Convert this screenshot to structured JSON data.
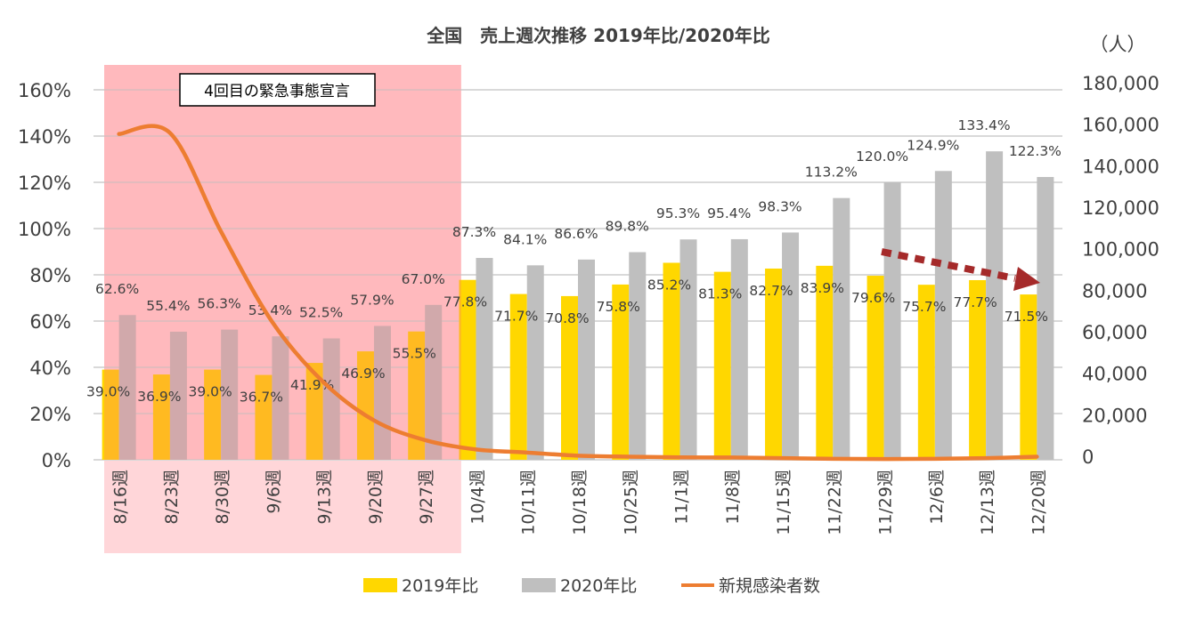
{
  "chart_data": {
    "type": "bar",
    "title": "全国　売上週次推移  2019年比/2020年比",
    "y2_unit": "（人）",
    "annotation": "4回目の緊急事態宣言",
    "categories": [
      "8/16週",
      "8/23週",
      "8/30週",
      "9/6週",
      "9/13週",
      "9/20週",
      "9/27週",
      "10/4週",
      "10/11週",
      "10/18週",
      "10/25週",
      "11/1週",
      "11/8週",
      "11/15週",
      "11/22週",
      "11/29週",
      "12/6週",
      "12/13週",
      "12/20週"
    ],
    "highlight_range": [
      "8/16週",
      "9/27週"
    ],
    "ylim": [
      0,
      160
    ],
    "yticks": [
      "0%",
      "20%",
      "40%",
      "60%",
      "80%",
      "100%",
      "120%",
      "140%",
      "160%"
    ],
    "y2lim": [
      0,
      180000
    ],
    "y2ticks": [
      "0",
      "20,000",
      "40,000",
      "60,000",
      "80,000",
      "100,000",
      "120,000",
      "140,000",
      "160,000",
      "180,000"
    ],
    "grid": true,
    "legend_position": "bottom",
    "series": [
      {
        "name": "2019年比",
        "type": "bar",
        "color": "#FFD700",
        "axis": "left",
        "values": [
          39.0,
          36.9,
          39.0,
          36.7,
          41.9,
          46.9,
          55.5,
          77.8,
          71.7,
          70.8,
          75.8,
          85.2,
          81.3,
          82.7,
          83.9,
          79.6,
          75.7,
          77.7,
          71.5
        ]
      },
      {
        "name": "2020年比",
        "type": "bar",
        "color": "#BFBFBF",
        "axis": "left",
        "values": [
          62.6,
          55.4,
          56.3,
          53.4,
          52.5,
          57.9,
          67.0,
          87.3,
          84.1,
          86.6,
          89.8,
          95.3,
          95.4,
          98.3,
          113.2,
          120.0,
          124.9,
          133.4,
          122.3
        ]
      },
      {
        "name": "新規感染者数",
        "type": "line",
        "color": "#ED7D31",
        "axis": "right",
        "values": [
          157000,
          157500,
          110000,
          66600,
          37600,
          19000,
          9500,
          5000,
          3500,
          2000,
          1500,
          1200,
          1100,
          800,
          500,
          400,
          500,
          800,
          1500
        ]
      }
    ],
    "highlight_color": "#FFD6D9",
    "arrow_color": "#A52A2A"
  }
}
